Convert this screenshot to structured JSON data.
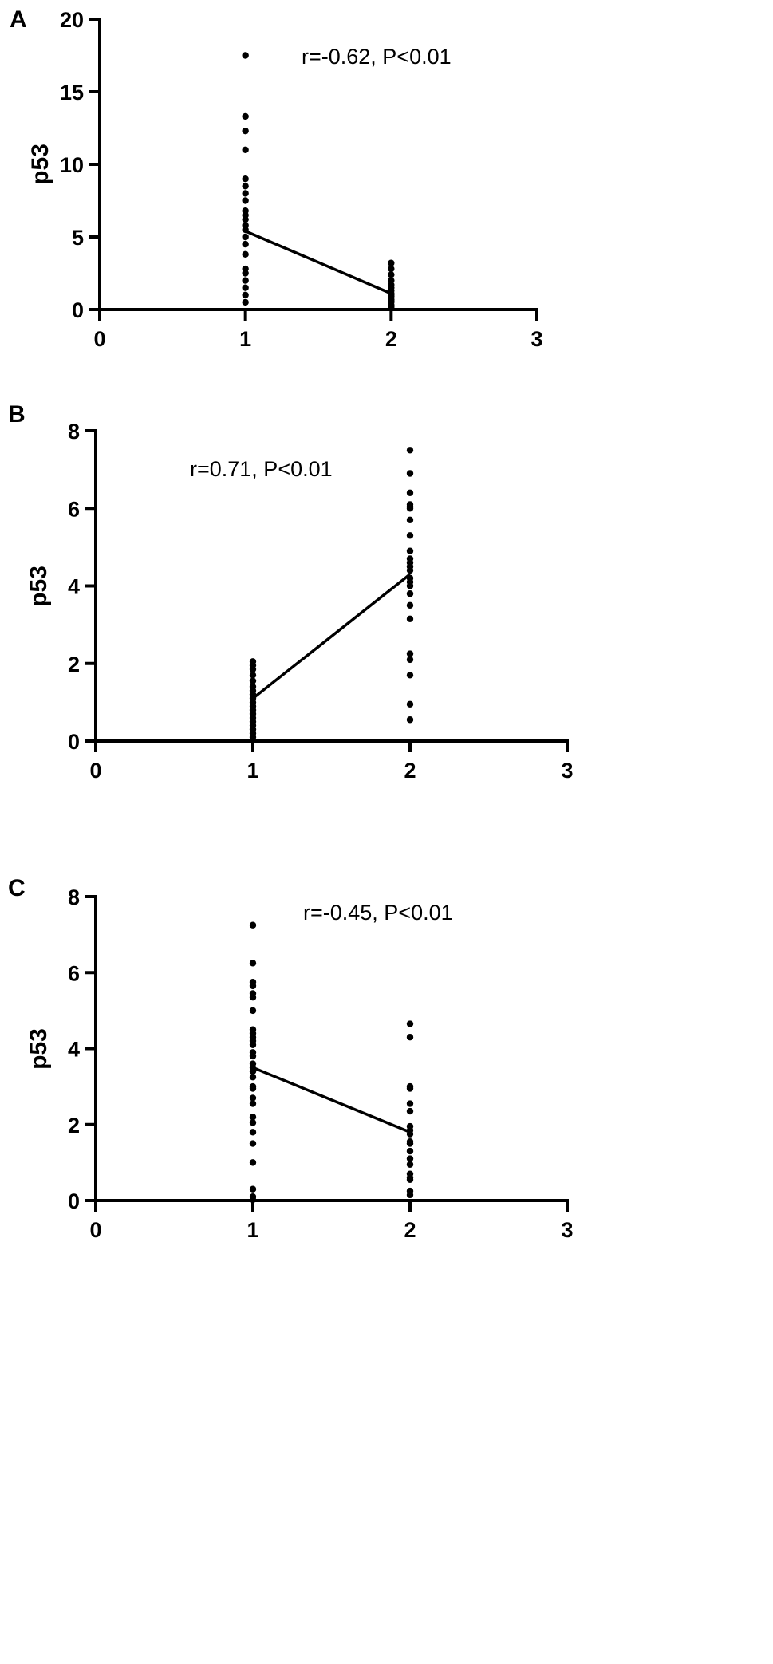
{
  "chart_data": [
    {
      "type": "scatter",
      "panel_label": "A",
      "ylabel": "p53",
      "xlim": [
        0,
        3
      ],
      "ylim": [
        0,
        20
      ],
      "xticks": [
        "0",
        "1",
        "2",
        "3"
      ],
      "yticks": [
        "0",
        "5",
        "10",
        "15",
        "20"
      ],
      "annotation": "r=-0.62,  P<0.01",
      "series": [
        {
          "x": [
            1,
            1,
            1,
            1,
            1,
            1,
            1,
            1,
            1,
            1,
            1,
            1,
            1,
            1,
            1,
            1,
            1,
            1,
            1,
            1,
            1,
            1,
            2,
            2,
            2,
            2,
            2,
            2,
            2,
            2,
            2,
            2,
            2,
            2,
            2,
            2,
            2,
            2
          ],
          "y": [
            17.5,
            13.3,
            12.3,
            11.0,
            9.0,
            8.5,
            8.0,
            7.5,
            6.8,
            6.5,
            6.2,
            5.8,
            5.5,
            5.0,
            4.5,
            3.8,
            2.8,
            2.5,
            2.0,
            1.5,
            1.0,
            0.5,
            3.2,
            2.8,
            2.4,
            2.0,
            1.7,
            1.5,
            1.3,
            1.1,
            1.0,
            0.9,
            0.7,
            0.6,
            0.5,
            0.3,
            0.2,
            0.1
          ]
        }
      ],
      "trend_line": {
        "x": [
          1,
          2
        ],
        "y": [
          5.4,
          1.1
        ]
      }
    },
    {
      "type": "scatter",
      "panel_label": "B",
      "ylabel": "p53",
      "xlim": [
        0,
        3
      ],
      "ylim": [
        0,
        8
      ],
      "xticks": [
        "0",
        "1",
        "2",
        "3"
      ],
      "yticks": [
        "0",
        "2",
        "4",
        "6",
        "8"
      ],
      "annotation": "r=0.71,  P<0.01",
      "series": [
        {
          "x": [
            1,
            1,
            1,
            1,
            1,
            1,
            1,
            1,
            1,
            1,
            1,
            1,
            1,
            1,
            1,
            1,
            1,
            1,
            1,
            1,
            2,
            2,
            2,
            2,
            2,
            2,
            2,
            2,
            2,
            2,
            2,
            2,
            2,
            2,
            2,
            2,
            2,
            2,
            2,
            2,
            2,
            2,
            2,
            2
          ],
          "y": [
            2.05,
            1.95,
            1.85,
            1.7,
            1.55,
            1.4,
            1.3,
            1.2,
            1.1,
            1.0,
            0.9,
            0.8,
            0.7,
            0.6,
            0.5,
            0.4,
            0.3,
            0.2,
            0.1,
            0.02,
            7.5,
            6.9,
            6.4,
            6.1,
            6.05,
            6.0,
            5.7,
            5.3,
            4.9,
            4.6,
            4.5,
            4.4,
            4.2,
            4.0,
            3.8,
            3.5,
            3.15,
            2.25,
            2.1,
            1.7,
            0.95,
            0.55,
            4.7,
            4.1
          ]
        }
      ],
      "trend_line": {
        "x": [
          1,
          2
        ],
        "y": [
          1.1,
          4.3
        ]
      }
    },
    {
      "type": "scatter",
      "panel_label": "C",
      "ylabel": "p53",
      "xlim": [
        0,
        3
      ],
      "ylim": [
        0,
        8
      ],
      "xticks": [
        "0",
        "1",
        "2",
        "3"
      ],
      "yticks": [
        "0",
        "2",
        "4",
        "6",
        "8"
      ],
      "annotation": "r=-0.45, P<0.01",
      "series": [
        {
          "x": [
            1,
            1,
            1,
            1,
            1,
            1,
            1,
            1,
            1,
            1,
            1,
            1,
            1,
            1,
            1,
            1,
            1,
            1,
            1,
            1,
            1,
            1,
            1,
            1,
            1,
            1,
            1,
            1,
            1,
            1,
            2,
            2,
            2,
            2,
            2,
            2,
            2,
            2,
            2,
            2,
            2,
            2,
            2,
            2,
            2,
            2,
            2,
            2,
            2
          ],
          "y": [
            7.25,
            6.25,
            5.75,
            5.65,
            5.45,
            5.35,
            5.0,
            4.5,
            4.4,
            4.1,
            3.8,
            3.6,
            3.5,
            3.25,
            2.95,
            2.7,
            2.55,
            2.05,
            1.8,
            1.5,
            1.0,
            0.3,
            0.1,
            0.02,
            4.3,
            4.2,
            3.9,
            3.4,
            3.0,
            2.2,
            4.65,
            4.3,
            3.0,
            2.95,
            2.55,
            2.35,
            1.95,
            1.85,
            1.75,
            1.55,
            1.3,
            1.1,
            0.95,
            0.7,
            0.6,
            0.55,
            0.25,
            0.15,
            1.5
          ]
        }
      ],
      "trend_line": {
        "x": [
          1,
          2
        ],
        "y": [
          3.5,
          1.8
        ]
      }
    }
  ]
}
